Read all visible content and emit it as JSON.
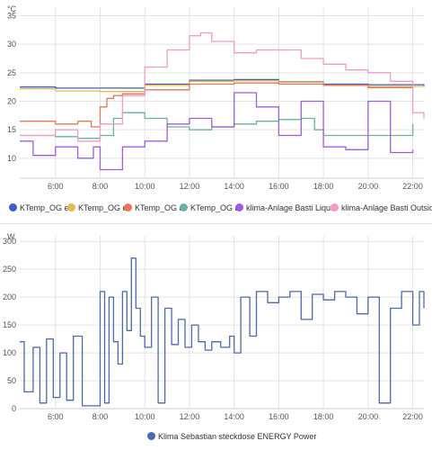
{
  "chart_data": [
    {
      "type": "line",
      "unit": "°C",
      "x_ticks": [
        "6:00",
        "8:00",
        "10:00",
        "12:00",
        "14:00",
        "16:00",
        "18:00",
        "20:00",
        "22:00"
      ],
      "y_ticks": [
        10,
        15,
        20,
        25,
        30,
        35
      ],
      "xlim": [
        4.4,
        22.5
      ],
      "ylim": [
        6.5,
        36.5
      ],
      "grid": true,
      "legend_position": "bottom",
      "series": [
        {
          "name": "KTemp_OG er",
          "color": "#3b5fc5",
          "x": [
            4.4,
            6,
            8,
            10,
            12,
            14,
            16,
            18,
            20,
            22,
            22.5
          ],
          "y": [
            22.5,
            22.3,
            22.3,
            23.0,
            23.7,
            23.8,
            23.4,
            23.0,
            22.9,
            22.9,
            22.7
          ]
        },
        {
          "name": "KTemp_OG el",
          "color": "#e8b94a",
          "x": [
            4.4,
            6,
            8,
            10,
            12,
            14,
            16,
            18,
            20,
            22,
            22.5
          ],
          "y": [
            22.2,
            21.8,
            21.7,
            22.8,
            23.5,
            23.6,
            23.3,
            22.8,
            22.6,
            22.6,
            22.5
          ]
        },
        {
          "name": "KTemp_OG al",
          "color": "#ee7555",
          "x": [
            4.4,
            5,
            6,
            7,
            7.6,
            8,
            8.3,
            8.6,
            9,
            10,
            12,
            14,
            16,
            18,
            20,
            22
          ],
          "y": [
            16.5,
            16.5,
            16.0,
            16.5,
            15.5,
            19.0,
            20.5,
            21.0,
            21.3,
            22.0,
            23.0,
            23.2,
            23.0,
            22.8,
            22.4,
            22.3
          ]
        },
        {
          "name": "KTemp_OG ar",
          "color": "#66b3a5",
          "x": [
            4.4,
            6,
            7,
            8,
            8.6,
            9,
            10,
            11,
            12,
            13,
            14,
            15,
            16,
            17,
            17.6,
            18,
            20,
            22
          ],
          "y": [
            14.0,
            13.8,
            13.5,
            14.0,
            17.0,
            18.0,
            17.0,
            15.5,
            15.0,
            15.5,
            16.0,
            16.5,
            16.8,
            17.0,
            15.0,
            14.0,
            14.0,
            16.0
          ]
        },
        {
          "name": "klima-Anlage Basti Liquid",
          "color": "#a05ce0",
          "x": [
            4.4,
            5,
            6,
            7,
            7.7,
            8,
            9,
            10,
            11,
            12,
            13,
            14,
            15,
            16,
            17,
            18,
            19,
            20,
            21,
            22
          ],
          "y": [
            13.0,
            10.5,
            12.0,
            10.0,
            12.0,
            8.0,
            12.0,
            13.0,
            16.0,
            17.0,
            15.5,
            21.5,
            19.0,
            14.0,
            20.0,
            12.0,
            11.5,
            20.0,
            11.0,
            11.5
          ]
        },
        {
          "name": "klima-Anlage Basti Outside",
          "color": "#f39ac5",
          "x": [
            4.4,
            6,
            7,
            8,
            9,
            10,
            11,
            12,
            12.5,
            13,
            14,
            15,
            16,
            17,
            18,
            19,
            20,
            21,
            22,
            22.5
          ],
          "y": [
            14.0,
            15.0,
            13.0,
            16.0,
            21.0,
            26.0,
            29.0,
            31.5,
            32.0,
            30.5,
            28.5,
            29.0,
            29.0,
            27.5,
            26.5,
            25.5,
            25.0,
            23.5,
            18.0,
            17.0
          ]
        }
      ]
    },
    {
      "type": "line",
      "unit": "W",
      "x_ticks": [
        "6:00",
        "8:00",
        "10:00",
        "12:00",
        "14:00",
        "16:00",
        "18:00",
        "20:00",
        "22:00"
      ],
      "y_ticks": [
        0,
        50,
        100,
        150,
        200,
        250,
        300
      ],
      "xlim": [
        4.4,
        22.5
      ],
      "ylim": [
        0,
        310
      ],
      "grid": true,
      "legend_position": "bottom",
      "series": [
        {
          "name": "Klima Sebastian steckdose ENERGY Power",
          "color": "#4a6ab0",
          "x": [
            4.4,
            4.6,
            5.0,
            5.3,
            5.6,
            5.9,
            6.2,
            6.5,
            6.8,
            7.2,
            7.5,
            7.8,
            8.0,
            8.2,
            8.4,
            8.6,
            8.8,
            9.0,
            9.2,
            9.4,
            9.6,
            9.8,
            10.0,
            10.3,
            10.6,
            10.9,
            11.2,
            11.5,
            11.8,
            12.1,
            12.4,
            12.7,
            13.0,
            13.4,
            13.8,
            14.0,
            14.3,
            14.7,
            15.0,
            15.5,
            16.0,
            16.5,
            17.0,
            17.5,
            18.0,
            18.5,
            19.0,
            19.5,
            20.0,
            20.5,
            21.0,
            21.5,
            22.0,
            22.3,
            22.5
          ],
          "y": [
            120,
            30,
            110,
            10,
            125,
            20,
            100,
            15,
            130,
            5,
            5,
            5,
            210,
            10,
            200,
            120,
            80,
            210,
            140,
            270,
            180,
            130,
            110,
            200,
            10,
            180,
            115,
            160,
            110,
            150,
            120,
            105,
            120,
            110,
            130,
            100,
            200,
            130,
            210,
            190,
            200,
            210,
            160,
            205,
            195,
            210,
            200,
            170,
            200,
            10,
            180,
            210,
            150,
            210,
            180
          ]
        }
      ]
    }
  ]
}
